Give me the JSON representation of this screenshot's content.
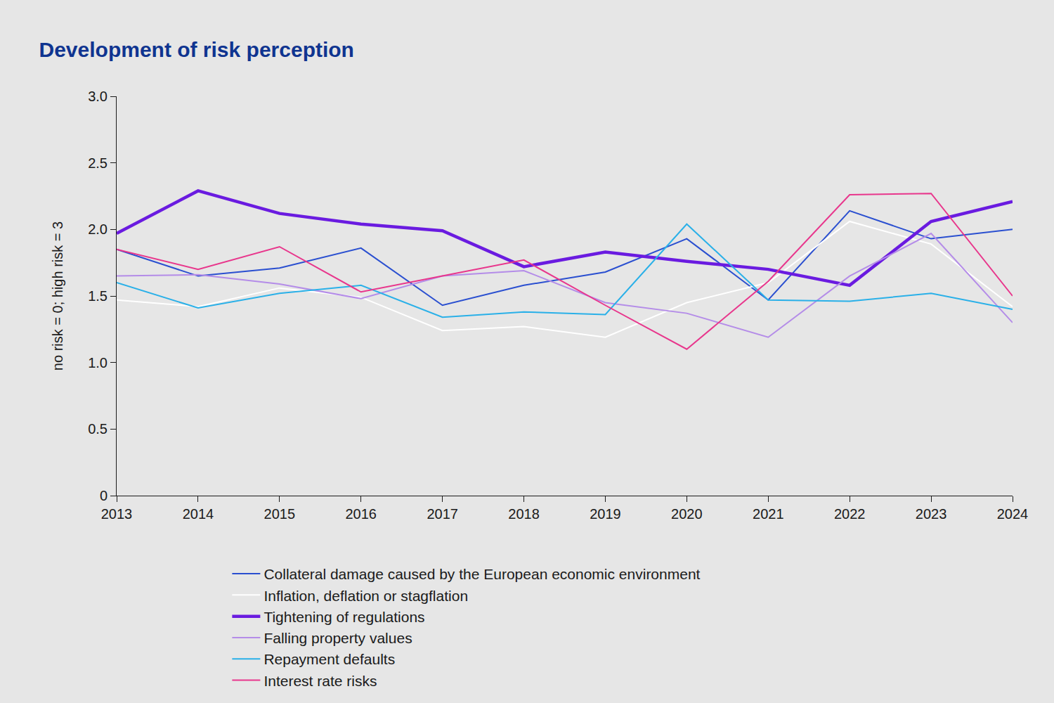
{
  "chart_data": {
    "type": "line",
    "title": "Development of risk perception",
    "y_label": "no risk = 0; high risk = 3",
    "x": [
      2013,
      2014,
      2015,
      2016,
      2017,
      2018,
      2019,
      2020,
      2021,
      2022,
      2023,
      2024
    ],
    "xlim": [
      2013,
      2024
    ],
    "xticks": [
      2013,
      2014,
      2015,
      2016,
      2017,
      2018,
      2019,
      2020,
      2021,
      2022,
      2023,
      2024
    ],
    "ylim": [
      0,
      3
    ],
    "yticks": [
      0,
      0.5,
      {
        "value": 1,
        "label": "1.0"
      },
      1.5,
      {
        "value": 2,
        "label": "2.0"
      },
      2.5,
      {
        "value": 3,
        "label": "3.0"
      }
    ],
    "grid": false,
    "legend": "bottom",
    "series": [
      {
        "name": "Collateral damage caused by the European economic environment",
        "color": "#2a4fd0",
        "line_style": "solid",
        "values": [
          1.85,
          1.65,
          1.71,
          1.86,
          1.43,
          1.58,
          1.68,
          1.93,
          1.47,
          2.14,
          1.93,
          2.0
        ]
      },
      {
        "name": "Inflation, deflation or stagflation",
        "color": "#ffffff",
        "line_style": "solid",
        "values": [
          1.47,
          1.42,
          1.56,
          1.49,
          1.24,
          1.27,
          1.19,
          1.45,
          1.6,
          2.06,
          1.89,
          1.42
        ]
      },
      {
        "name": "Tightening of regulations",
        "color": "#6a1be0",
        "line_style": "thick",
        "values": [
          1.97,
          2.29,
          2.12,
          2.04,
          1.99,
          1.72,
          1.83,
          1.76,
          1.7,
          1.58,
          2.06,
          2.21
        ]
      },
      {
        "name": "Falling property values",
        "color": "#b48ce8",
        "line_style": "solid",
        "values": [
          1.65,
          1.66,
          1.59,
          1.48,
          1.65,
          1.69,
          1.45,
          1.37,
          1.19,
          1.65,
          1.97,
          1.3
        ]
      },
      {
        "name": "Repayment defaults",
        "color": "#2ab0e8",
        "line_style": "solid",
        "values": [
          1.6,
          1.41,
          1.52,
          1.58,
          1.34,
          1.38,
          1.36,
          2.04,
          1.47,
          1.46,
          1.52,
          1.4
        ]
      },
      {
        "name": "Interest rate risks",
        "color": "#e8368c",
        "line_style": "solid",
        "values": [
          1.85,
          1.7,
          1.87,
          1.53,
          1.65,
          1.77,
          1.43,
          1.1,
          1.61,
          2.26,
          2.27,
          1.5
        ]
      }
    ]
  }
}
